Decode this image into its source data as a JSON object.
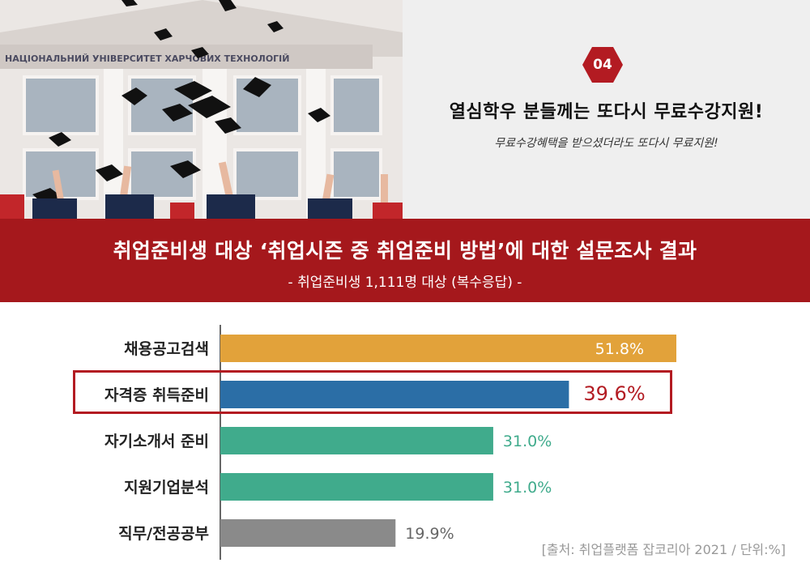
{
  "intro": {
    "badge_number": "04",
    "headline": "열심학우 분들께는 또다시 무료수강지원!",
    "subline": "무료수강혜택을 받으셨더라도 또다시 무료지원!",
    "photo_banner_text": "НАЦІОНАЛЬНИЙ УНІВЕРСИТЕТ ХАРЧОВИХ ТЕХНОЛОГІЙ"
  },
  "colors": {
    "banner_red": "#a5181c",
    "badge_red": "#b31b22",
    "highlight_border": "#b31b22"
  },
  "chart_data": {
    "type": "bar",
    "orientation": "horizontal",
    "title": "취업준비생 대상 ‘취업시즌 중 취업준비 방법’에 대한 설문조사 결과",
    "subtitle": "- 취업준비생 1,111명 대상 (복수응답) -",
    "categories": [
      "채용공고검색",
      "자격증 취득준비",
      "자기소개서 준비",
      "지원기업분석",
      "직무/전공공부"
    ],
    "values": [
      51.8,
      39.6,
      31.0,
      31.0,
      19.9
    ],
    "value_labels": [
      "51.8%",
      "39.6%",
      "31.0%",
      "31.0%",
      "19.9%"
    ],
    "bar_colors": [
      "#e2a23a",
      "#2b6ea6",
      "#40ab8c",
      "#40ab8c",
      "#8a8a8a"
    ],
    "highlighted": "자격증 취득준비",
    "xlim": [
      0,
      55
    ],
    "grid": false,
    "source": "[출처: 취업플랫폼 잡코리아 2021 / 단위:%]"
  }
}
